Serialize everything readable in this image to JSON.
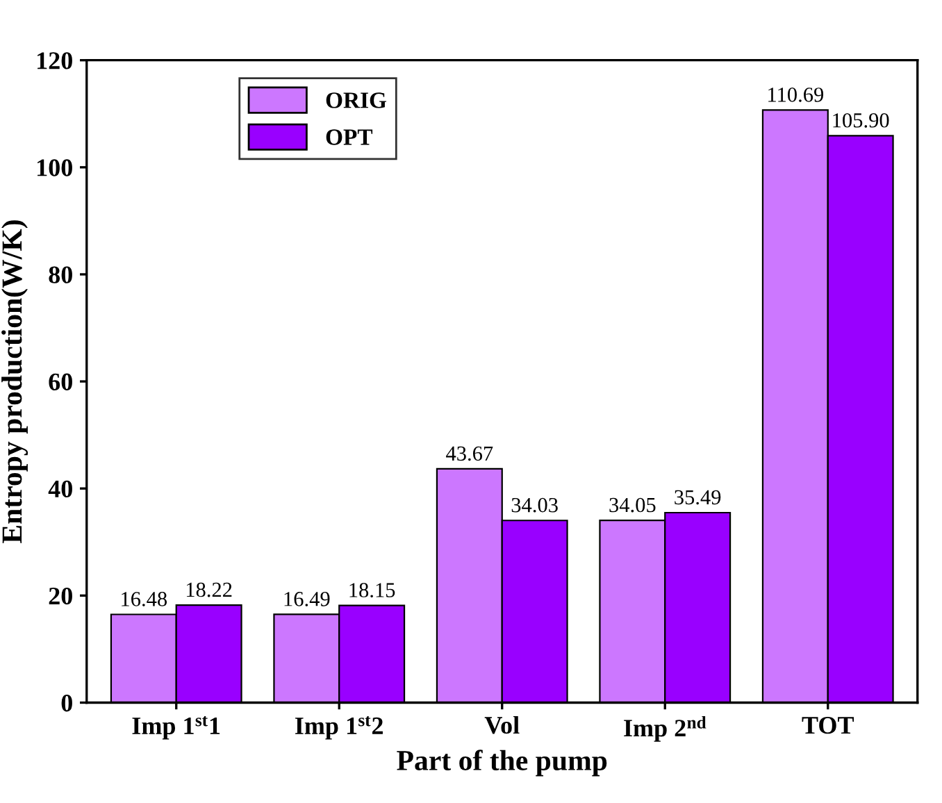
{
  "chart_data": {
    "type": "bar",
    "xlabel": "Part of the pump",
    "ylabel": "Entropy production(W/K)",
    "categories": [
      "Imp 1$^{st}$1",
      "Imp 1$^{st}$2",
      "Vol",
      "Imp 2$^{nd}$",
      "TOT"
    ],
    "series": [
      {
        "name": "ORIG",
        "color": "#cc77ff",
        "values": [
          16.48,
          16.49,
          43.67,
          34.05,
          110.69
        ],
        "value_labels": [
          "16.48",
          "16.49",
          "43.67",
          "34.05",
          "110.69"
        ]
      },
      {
        "name": "OPT",
        "color": "#9900ff",
        "values": [
          18.22,
          18.15,
          34.03,
          35.49,
          105.9
        ],
        "value_labels": [
          "18.22",
          "18.15",
          "34.03",
          "35.49",
          "105.90"
        ]
      }
    ],
    "ylim": [
      0,
      120
    ],
    "yticks": [
      0,
      20,
      40,
      60,
      80,
      100,
      120
    ],
    "grid": false,
    "legend": "top left"
  }
}
